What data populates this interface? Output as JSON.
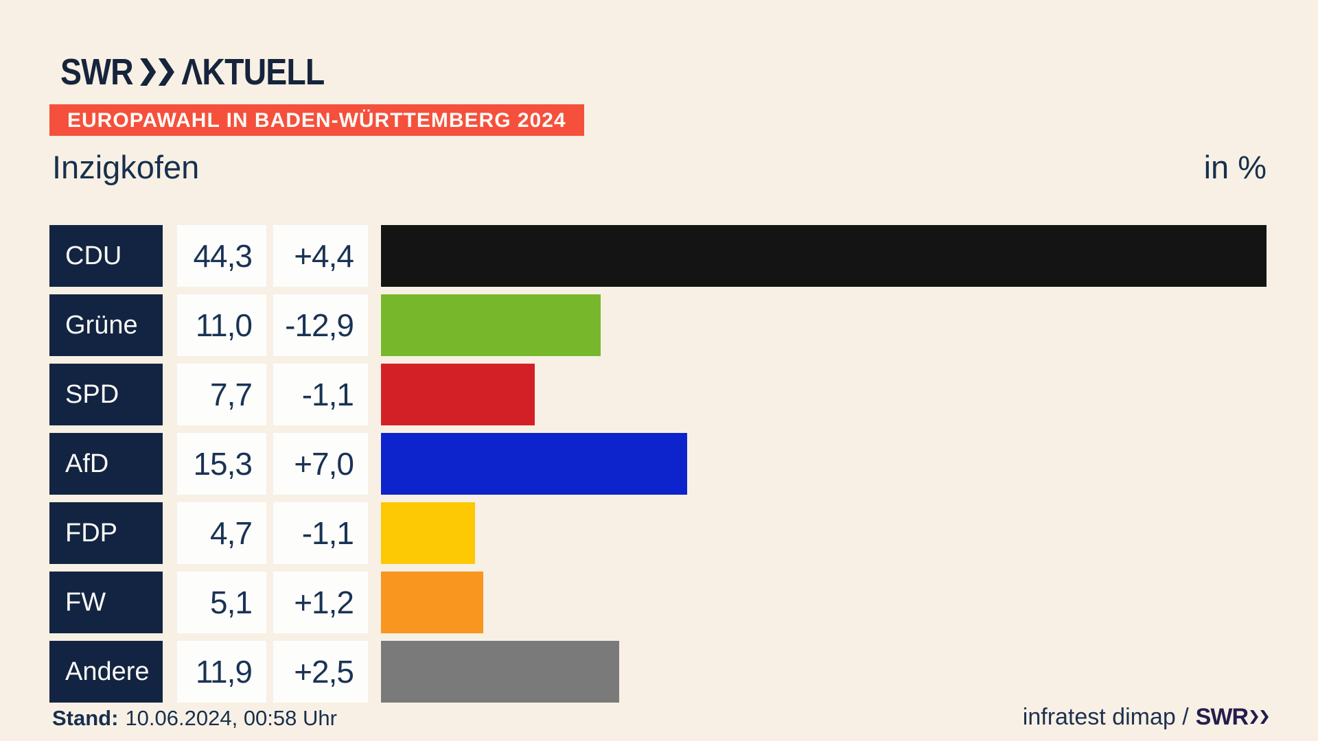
{
  "brand": {
    "logo_text": "SWR",
    "logo_suffix": "ΛKTUELL"
  },
  "header": {
    "banner": "EUROPAWAHL IN BADEN-WÜRTTEMBERG 2024",
    "title": "Inzigkofen",
    "unit_label": "in %"
  },
  "chart_data": {
    "type": "bar",
    "orientation": "horizontal",
    "title": "Inzigkofen",
    "unit": "in %",
    "categories": [
      "CDU",
      "Grüne",
      "SPD",
      "AfD",
      "FDP",
      "FW",
      "Andere"
    ],
    "values": [
      44.3,
      11.0,
      7.7,
      15.3,
      4.7,
      5.1,
      11.9
    ],
    "value_labels": [
      "44,3",
      "11,0",
      "7,7",
      "15,3",
      "4,7",
      "5,1",
      "11,9"
    ],
    "changes": [
      "+4,4",
      "-12,9",
      "-1,1",
      "+7,0",
      "-1,1",
      "+1,2",
      "+2,5"
    ],
    "bar_colors": [
      "#141414",
      "#77b72b",
      "#d32027",
      "#0d23cb",
      "#fdc804",
      "#f8961f",
      "#7a7a7a"
    ],
    "xlim": [
      0,
      44.3
    ],
    "axis_hidden": true,
    "legend": "none"
  },
  "footer": {
    "stand_label": "Stand:",
    "stand_value": "10.06.2024, 00:58 Uhr",
    "source_text": "infratest dimap /",
    "source_brand": "SWR"
  },
  "colors": {
    "navy_box": "#122441",
    "navy_text": "#1a3354",
    "banner_red": "#f5503c",
    "background_cream": "#f8f0e4",
    "background_gray": "#c9c6c2",
    "box_white": "#fdfdfc"
  }
}
